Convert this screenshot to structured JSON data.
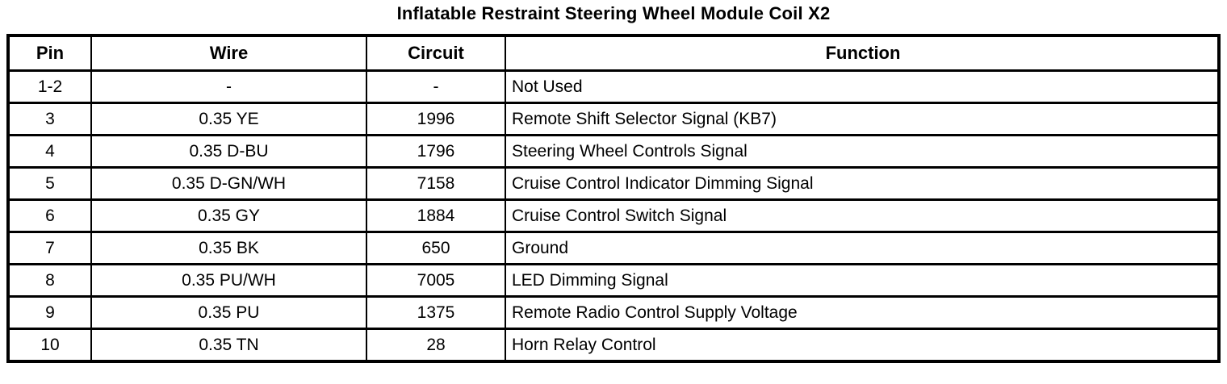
{
  "title": "Inflatable Restraint Steering Wheel Module Coil X2",
  "colors": {
    "border": "#000000",
    "text": "#000000",
    "background": "#ffffff"
  },
  "table": {
    "columns": [
      "Pin",
      "Wire",
      "Circuit",
      "Function"
    ],
    "rows": [
      {
        "pin": "1-2",
        "wire": "-",
        "circuit": "-",
        "function": "Not Used"
      },
      {
        "pin": "3",
        "wire": "0.35 YE",
        "circuit": "1996",
        "function": "Remote Shift Selector Signal (KB7)"
      },
      {
        "pin": "4",
        "wire": "0.35 D-BU",
        "circuit": "1796",
        "function": "Steering Wheel Controls Signal"
      },
      {
        "pin": "5",
        "wire": "0.35 D-GN/WH",
        "circuit": "7158",
        "function": "Cruise Control Indicator Dimming Signal"
      },
      {
        "pin": "6",
        "wire": "0.35 GY",
        "circuit": "1884",
        "function": "Cruise Control Switch Signal"
      },
      {
        "pin": "7",
        "wire": "0.35 BK",
        "circuit": "650",
        "function": "Ground"
      },
      {
        "pin": "8",
        "wire": "0.35 PU/WH",
        "circuit": "7005",
        "function": "LED Dimming Signal"
      },
      {
        "pin": "9",
        "wire": "0.35 PU",
        "circuit": "1375",
        "function": "Remote Radio Control Supply Voltage"
      },
      {
        "pin": "10",
        "wire": "0.35 TN",
        "circuit": "28",
        "function": "Horn Relay Control"
      }
    ]
  }
}
